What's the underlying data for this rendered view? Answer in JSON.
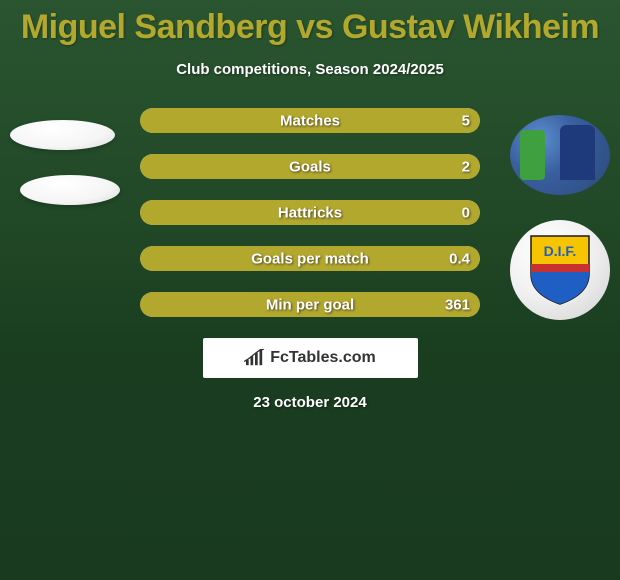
{
  "header": {
    "title": "Miguel Sandberg vs Gustav Wikheim",
    "subtitle": "Club competitions, Season 2024/2025"
  },
  "colors": {
    "background_top": "#2a5530",
    "background_bottom": "#193a1f",
    "title_color": "#b3a82e",
    "text_color": "#ffffff",
    "bar_track": "#e8e8e8",
    "bar_fill": "#b3a82e"
  },
  "bars": [
    {
      "label": "Matches",
      "value_right": "5",
      "fill_pct": 100
    },
    {
      "label": "Goals",
      "value_right": "2",
      "fill_pct": 100
    },
    {
      "label": "Hattricks",
      "value_right": "0",
      "fill_pct": 100
    },
    {
      "label": "Goals per match",
      "value_right": "0.4",
      "fill_pct": 100
    },
    {
      "label": "Min per goal",
      "value_right": "361",
      "fill_pct": 100
    }
  ],
  "brand": {
    "text_prefix": "Fc",
    "text_suffix": "Tables.com"
  },
  "footer": {
    "date": "23 october 2024"
  },
  "shield": {
    "top_color": "#f6c400",
    "bottom_color": "#1f5fc4",
    "stripe_color": "#c93030",
    "letters": "D.I.F."
  }
}
